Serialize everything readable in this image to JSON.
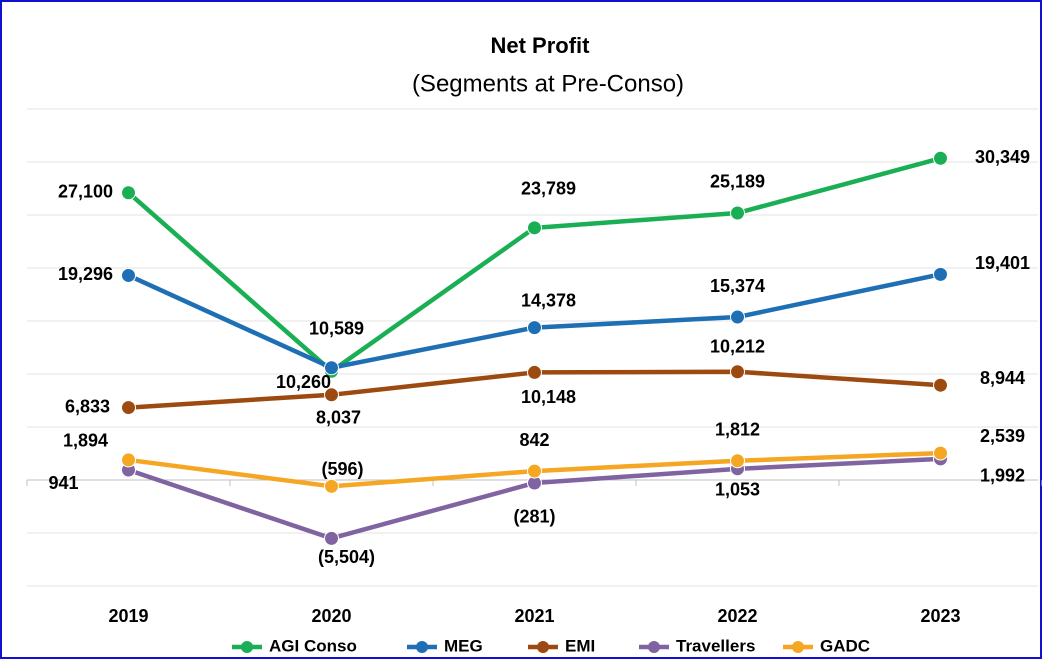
{
  "chart_data": {
    "type": "line",
    "title": "Net Profit",
    "subtitle": "(Segments at Pre-Conso)",
    "categories": [
      "2019",
      "2020",
      "2021",
      "2022",
      "2023"
    ],
    "ylim": [
      -10000,
      35000
    ],
    "yticks": [
      -10000,
      -5000,
      0,
      5000,
      10000,
      15000,
      20000,
      25000,
      30000,
      35000
    ],
    "grid": true,
    "legend": "bottom",
    "series": [
      {
        "name": "AGI Conso",
        "color": "#1aaf54",
        "values": [
          27100,
          10260,
          23789,
          25189,
          30349
        ],
        "value_labels": [
          "27,100",
          "10,260",
          "23,789",
          "25,189",
          "30,349"
        ]
      },
      {
        "name": "MEG",
        "color": "#1f6fb5",
        "values": [
          19296,
          10589,
          14378,
          15374,
          19401
        ],
        "value_labels": [
          "19,296",
          "10,589",
          "14,378",
          "15,374",
          "19,401"
        ]
      },
      {
        "name": "EMI",
        "color": "#9c4a10",
        "values": [
          6833,
          8037,
          10148,
          10212,
          8944
        ],
        "value_labels": [
          "6,833",
          "8,037",
          "10,148",
          "10,212",
          "8,944"
        ]
      },
      {
        "name": "Travellers",
        "color": "#8064a2",
        "values": [
          941,
          -5504,
          -281,
          1053,
          1992
        ],
        "value_labels": [
          "941",
          "(5,504)",
          "(281)",
          "1,053",
          "1,992"
        ]
      },
      {
        "name": "GADC",
        "color": "#f5a623",
        "values": [
          1894,
          -596,
          842,
          1812,
          2539
        ],
        "value_labels": [
          "1,894",
          "(596)",
          "842",
          "1,812",
          "2,539"
        ]
      }
    ]
  }
}
